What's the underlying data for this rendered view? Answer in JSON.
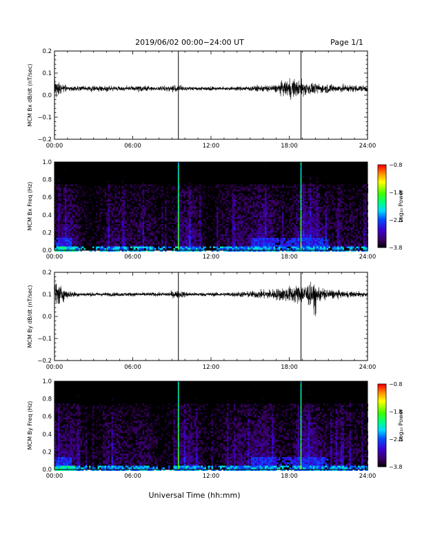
{
  "header": {
    "title": "2019/06/02  00:00−24:00 UT",
    "page": "Page 1/1"
  },
  "footer": {
    "xlabel": "Universal Time (hh:mm)"
  },
  "chart_data": [
    {
      "type": "line",
      "id": "bx-timeseries",
      "ylabel": "MCM Bx dB/dt (nT/sec)",
      "xlim": [
        0,
        24
      ],
      "ylim": [
        -0.2,
        0.2
      ],
      "xticks": [
        0,
        6,
        12,
        18,
        24
      ],
      "xtick_labels": [
        "00:00",
        "06:00",
        "12:00",
        "18:00",
        "24:00"
      ],
      "yticks": [
        -0.2,
        -0.1,
        0.0,
        0.1,
        0.2
      ],
      "ytick_labels": [
        "−0.2",
        "−0.1",
        "0.0",
        "0.1",
        "0.2"
      ],
      "baseline": 0.03,
      "markers_hours": [
        9.5,
        18.9
      ],
      "amplitude_profile": [
        [
          0,
          0.03
        ],
        [
          0.3,
          0.02
        ],
        [
          1,
          0.008
        ],
        [
          6,
          0.007
        ],
        [
          6.5,
          0.01
        ],
        [
          7.5,
          0.005
        ],
        [
          9,
          0.01
        ],
        [
          9.5,
          0.012
        ],
        [
          10,
          0.006
        ],
        [
          14,
          0.006
        ],
        [
          16,
          0.01
        ],
        [
          17,
          0.012
        ],
        [
          18,
          0.03
        ],
        [
          19,
          0.025
        ],
        [
          20,
          0.015
        ],
        [
          22,
          0.012
        ],
        [
          24,
          0.01
        ]
      ]
    },
    {
      "type": "heatmap",
      "id": "bx-spectrogram",
      "ylabel": "MCM Bx Freq (Hz)",
      "xlim": [
        0,
        24
      ],
      "ylim": [
        0,
        1.0
      ],
      "xticks": [
        0,
        6,
        12,
        18,
        24
      ],
      "xtick_labels": [
        "00:00",
        "06:00",
        "12:00",
        "18:00",
        "24:00"
      ],
      "yticks": [
        0.0,
        0.2,
        0.4,
        0.6,
        0.8,
        1.0
      ],
      "ytick_labels": [
        "0.0",
        "0.2",
        "0.4",
        "0.6",
        "0.8",
        "1.0"
      ],
      "markers_hours": [
        9.5,
        18.9
      ],
      "colorbar": {
        "label": "Log₁₀ Power",
        "range": [
          -3.8,
          -0.8
        ],
        "ticks": [
          -3.8,
          -2.8,
          -1.8,
          -0.8
        ],
        "tick_labels": [
          "−3.8",
          "−2.8",
          "−1.8",
          "−0.8"
        ]
      }
    },
    {
      "type": "line",
      "id": "by-timeseries",
      "ylabel": "MCM By dB/dt (nT/sec)",
      "xlim": [
        0,
        24
      ],
      "ylim": [
        -0.2,
        0.2
      ],
      "xticks": [
        0,
        6,
        12,
        18,
        24
      ],
      "xtick_labels": [
        "00:00",
        "06:00",
        "12:00",
        "18:00",
        "24:00"
      ],
      "yticks": [
        -0.2,
        -0.1,
        0.0,
        0.1,
        0.2
      ],
      "ytick_labels": [
        "−0.2",
        "−0.1",
        "0.0",
        "0.1",
        "0.2"
      ],
      "baseline": 0.1,
      "markers_hours": [
        9.5,
        18.9
      ],
      "amplitude_profile": [
        [
          0,
          0.05
        ],
        [
          0.4,
          0.03
        ],
        [
          1,
          0.012
        ],
        [
          2,
          0.006
        ],
        [
          6,
          0.006
        ],
        [
          8.5,
          0.006
        ],
        [
          9.3,
          0.012
        ],
        [
          9.8,
          0.01
        ],
        [
          10.5,
          0.006
        ],
        [
          13,
          0.006
        ],
        [
          15,
          0.01
        ],
        [
          17,
          0.018
        ],
        [
          18.5,
          0.028
        ],
        [
          19.5,
          0.035
        ],
        [
          20.5,
          0.02
        ],
        [
          22,
          0.01
        ],
        [
          24,
          0.008
        ]
      ]
    },
    {
      "type": "heatmap",
      "id": "by-spectrogram",
      "ylabel": "MCM By Freq (Hz)",
      "xlim": [
        0,
        24
      ],
      "ylim": [
        0,
        1.0
      ],
      "xticks": [
        0,
        6,
        12,
        18,
        24
      ],
      "xtick_labels": [
        "00:00",
        "06:00",
        "12:00",
        "18:00",
        "24:00"
      ],
      "yticks": [
        0.0,
        0.2,
        0.4,
        0.6,
        0.8,
        1.0
      ],
      "ytick_labels": [
        "0.0",
        "0.2",
        "0.4",
        "0.6",
        "0.8",
        "1.0"
      ],
      "markers_hours": [
        9.5,
        18.9
      ],
      "colorbar": {
        "label": "Log₁₀ Power",
        "range": [
          -3.8,
          -0.8
        ],
        "ticks": [
          -3.8,
          -2.8,
          -1.8,
          -0.8
        ],
        "tick_labels": [
          "−3.8",
          "−2.8",
          "−1.8",
          "−0.8"
        ]
      }
    }
  ]
}
